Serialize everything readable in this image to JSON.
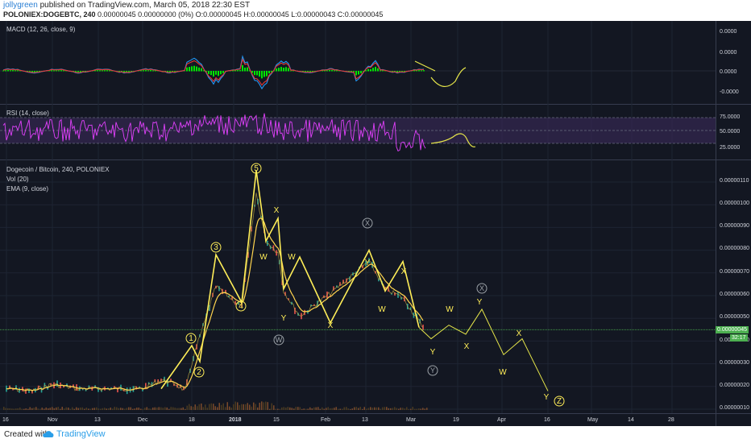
{
  "header": {
    "author": "jollygreen",
    "published": " published on TradingView.com, March 05, 2018 22:30 EST",
    "symbol_line": "POLONIEX:DOGEBTC, 240",
    "ohlc": "0.00000045 0.00000000 (0%) O:0.00000045 H:0.00000045 L:0.00000043 C:0.00000045"
  },
  "footer": {
    "created": "Created with",
    "brand": "TradingView"
  },
  "panes": {
    "macd": {
      "label": "MACD (12, 26, close, 9)",
      "ticks": [
        "0.0000",
        "0.0000",
        "0.0000",
        "-0.0000"
      ]
    },
    "rsi": {
      "label": "RSI (14, close)",
      "ticks": [
        "75.0000",
        "50.0000",
        "25.0000"
      ]
    },
    "price": {
      "title": "Dogecoin / Bitcoin, 240, POLONIEX",
      "vol": "Vol (20)",
      "ema": "EMA (9, close)",
      "ticks": [
        "0.00000110",
        "0.00000100",
        "0.00000090",
        "0.00000080",
        "0.00000070",
        "0.00000060",
        "0.00000050",
        "0.00000040",
        "0.00000030",
        "0.00000020",
        "0.00000010"
      ],
      "last_price_badge": "0.00000045",
      "countdown_badge": "32:17"
    }
  },
  "x_axis": [
    "16",
    "Nov",
    "13",
    "Dec",
    "18",
    "2018",
    "15",
    "Feb",
    "13",
    "Mar",
    "19",
    "Apr",
    "16",
    "May",
    "14",
    "28"
  ],
  "colors": {
    "background": "#131722",
    "macd_line": "#2196f3",
    "signal_line": "#e53935",
    "histogram": "#00e600",
    "rsi_line": "#e040fb",
    "rsi_band": "#3b2a5a",
    "wave": "#ffee58",
    "projection": "#e6e64a",
    "ema": "#ffd54f",
    "last_price": "#4caf50"
  },
  "chart_data": {
    "type": "line",
    "symbol": "POLONIEX:DOGEBTC",
    "interval": "240",
    "x_labels": [
      "16",
      "Nov",
      "13",
      "Dec",
      "18",
      "2018",
      "15",
      "Feb",
      "13",
      "Mar",
      "19",
      "Apr",
      "16",
      "May",
      "14",
      "28"
    ],
    "series": [
      {
        "name": "Dogecoin / Bitcoin",
        "values": [
          1.9e-07,
          1.8e-07,
          2.1e-07,
          1.9e-07,
          1.9e-07,
          1.9e-07,
          1.9e-07,
          2.3e-07,
          2.1e-07,
          1.8e-07,
          3.3e-07,
          6.4e-07,
          5.5e-07,
          1.05e-06,
          8.4e-07,
          7.9e-07,
          6.2e-07,
          5.1e-07,
          6.1e-07,
          7.5e-07,
          6.3e-07,
          5.9e-07,
          4.6e-07
        ]
      },
      {
        "name": "Wave projection",
        "values": [
          4.6e-07,
          4.1e-07,
          4.7e-07,
          4.3e-07,
          5.4e-07,
          3.4e-07,
          4.1e-07,
          1.8e-07
        ]
      }
    ],
    "wave_labels": [
      "1",
      "2",
      "3",
      "4",
      "5",
      "W",
      "X",
      "Y",
      "W",
      "X",
      "Y",
      "W",
      "X",
      "Y",
      "W",
      "X",
      "Y",
      "W",
      "X",
      "W",
      "X",
      "Y",
      "Z"
    ],
    "ylim": [
      1e-07,
      1.1e-06
    ],
    "rsi_levels": [
      75,
      50,
      25
    ],
    "grid": true
  }
}
